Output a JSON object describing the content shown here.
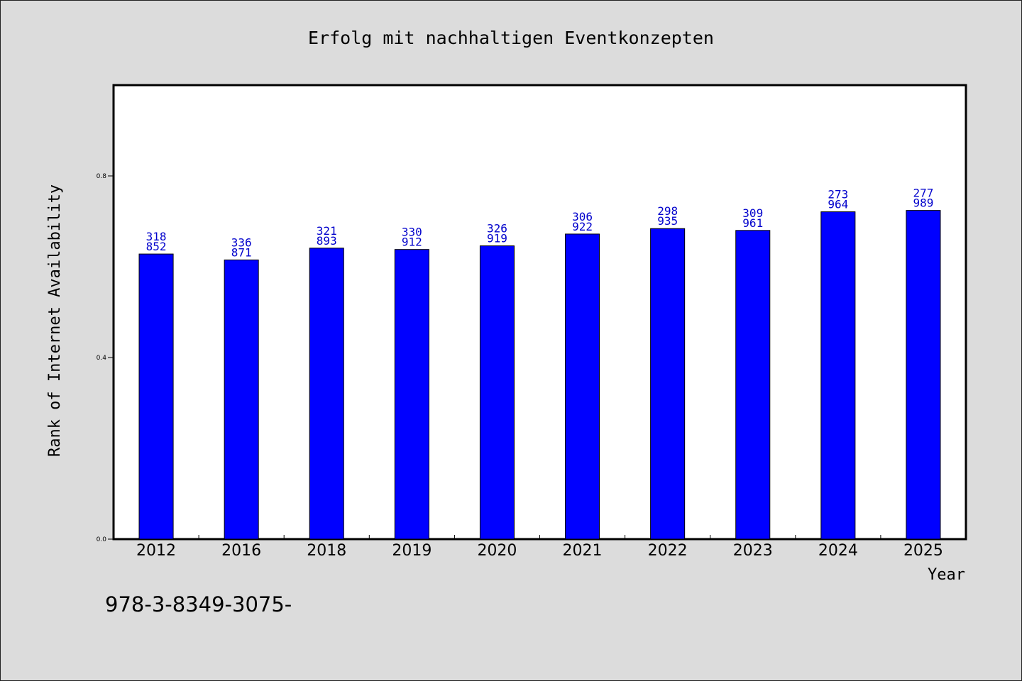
{
  "chart_data": {
    "type": "bar",
    "title": "Erfolg mit nachhaltigen Eventkonzepten",
    "xlabel": "Year",
    "ylabel": "Rank of Internet Availability",
    "categories": [
      "2012",
      "2016",
      "2018",
      "2019",
      "2020",
      "2021",
      "2022",
      "2023",
      "2024",
      "2025"
    ],
    "values": [
      0.628,
      0.615,
      0.641,
      0.638,
      0.646,
      0.672,
      0.684,
      0.68,
      0.721,
      0.724
    ],
    "data_labels": [
      [
        "318",
        "852"
      ],
      [
        "336",
        "871"
      ],
      [
        "321",
        "893"
      ],
      [
        "330",
        "912"
      ],
      [
        "326",
        "919"
      ],
      [
        "306",
        "922"
      ],
      [
        "298",
        "935"
      ],
      [
        "309",
        "961"
      ],
      [
        "273",
        "964"
      ],
      [
        "277",
        "989"
      ]
    ],
    "yticks": [
      "0.0",
      "0.4",
      "0.8"
    ],
    "ytick_values": [
      0.0,
      0.4,
      0.8
    ],
    "ylim": [
      0,
      1.0
    ],
    "grid": false,
    "legend": "none",
    "bar_color": "#0000ff",
    "label_color": "#0000cc"
  },
  "footer_text": "978-3-8349-3075-"
}
